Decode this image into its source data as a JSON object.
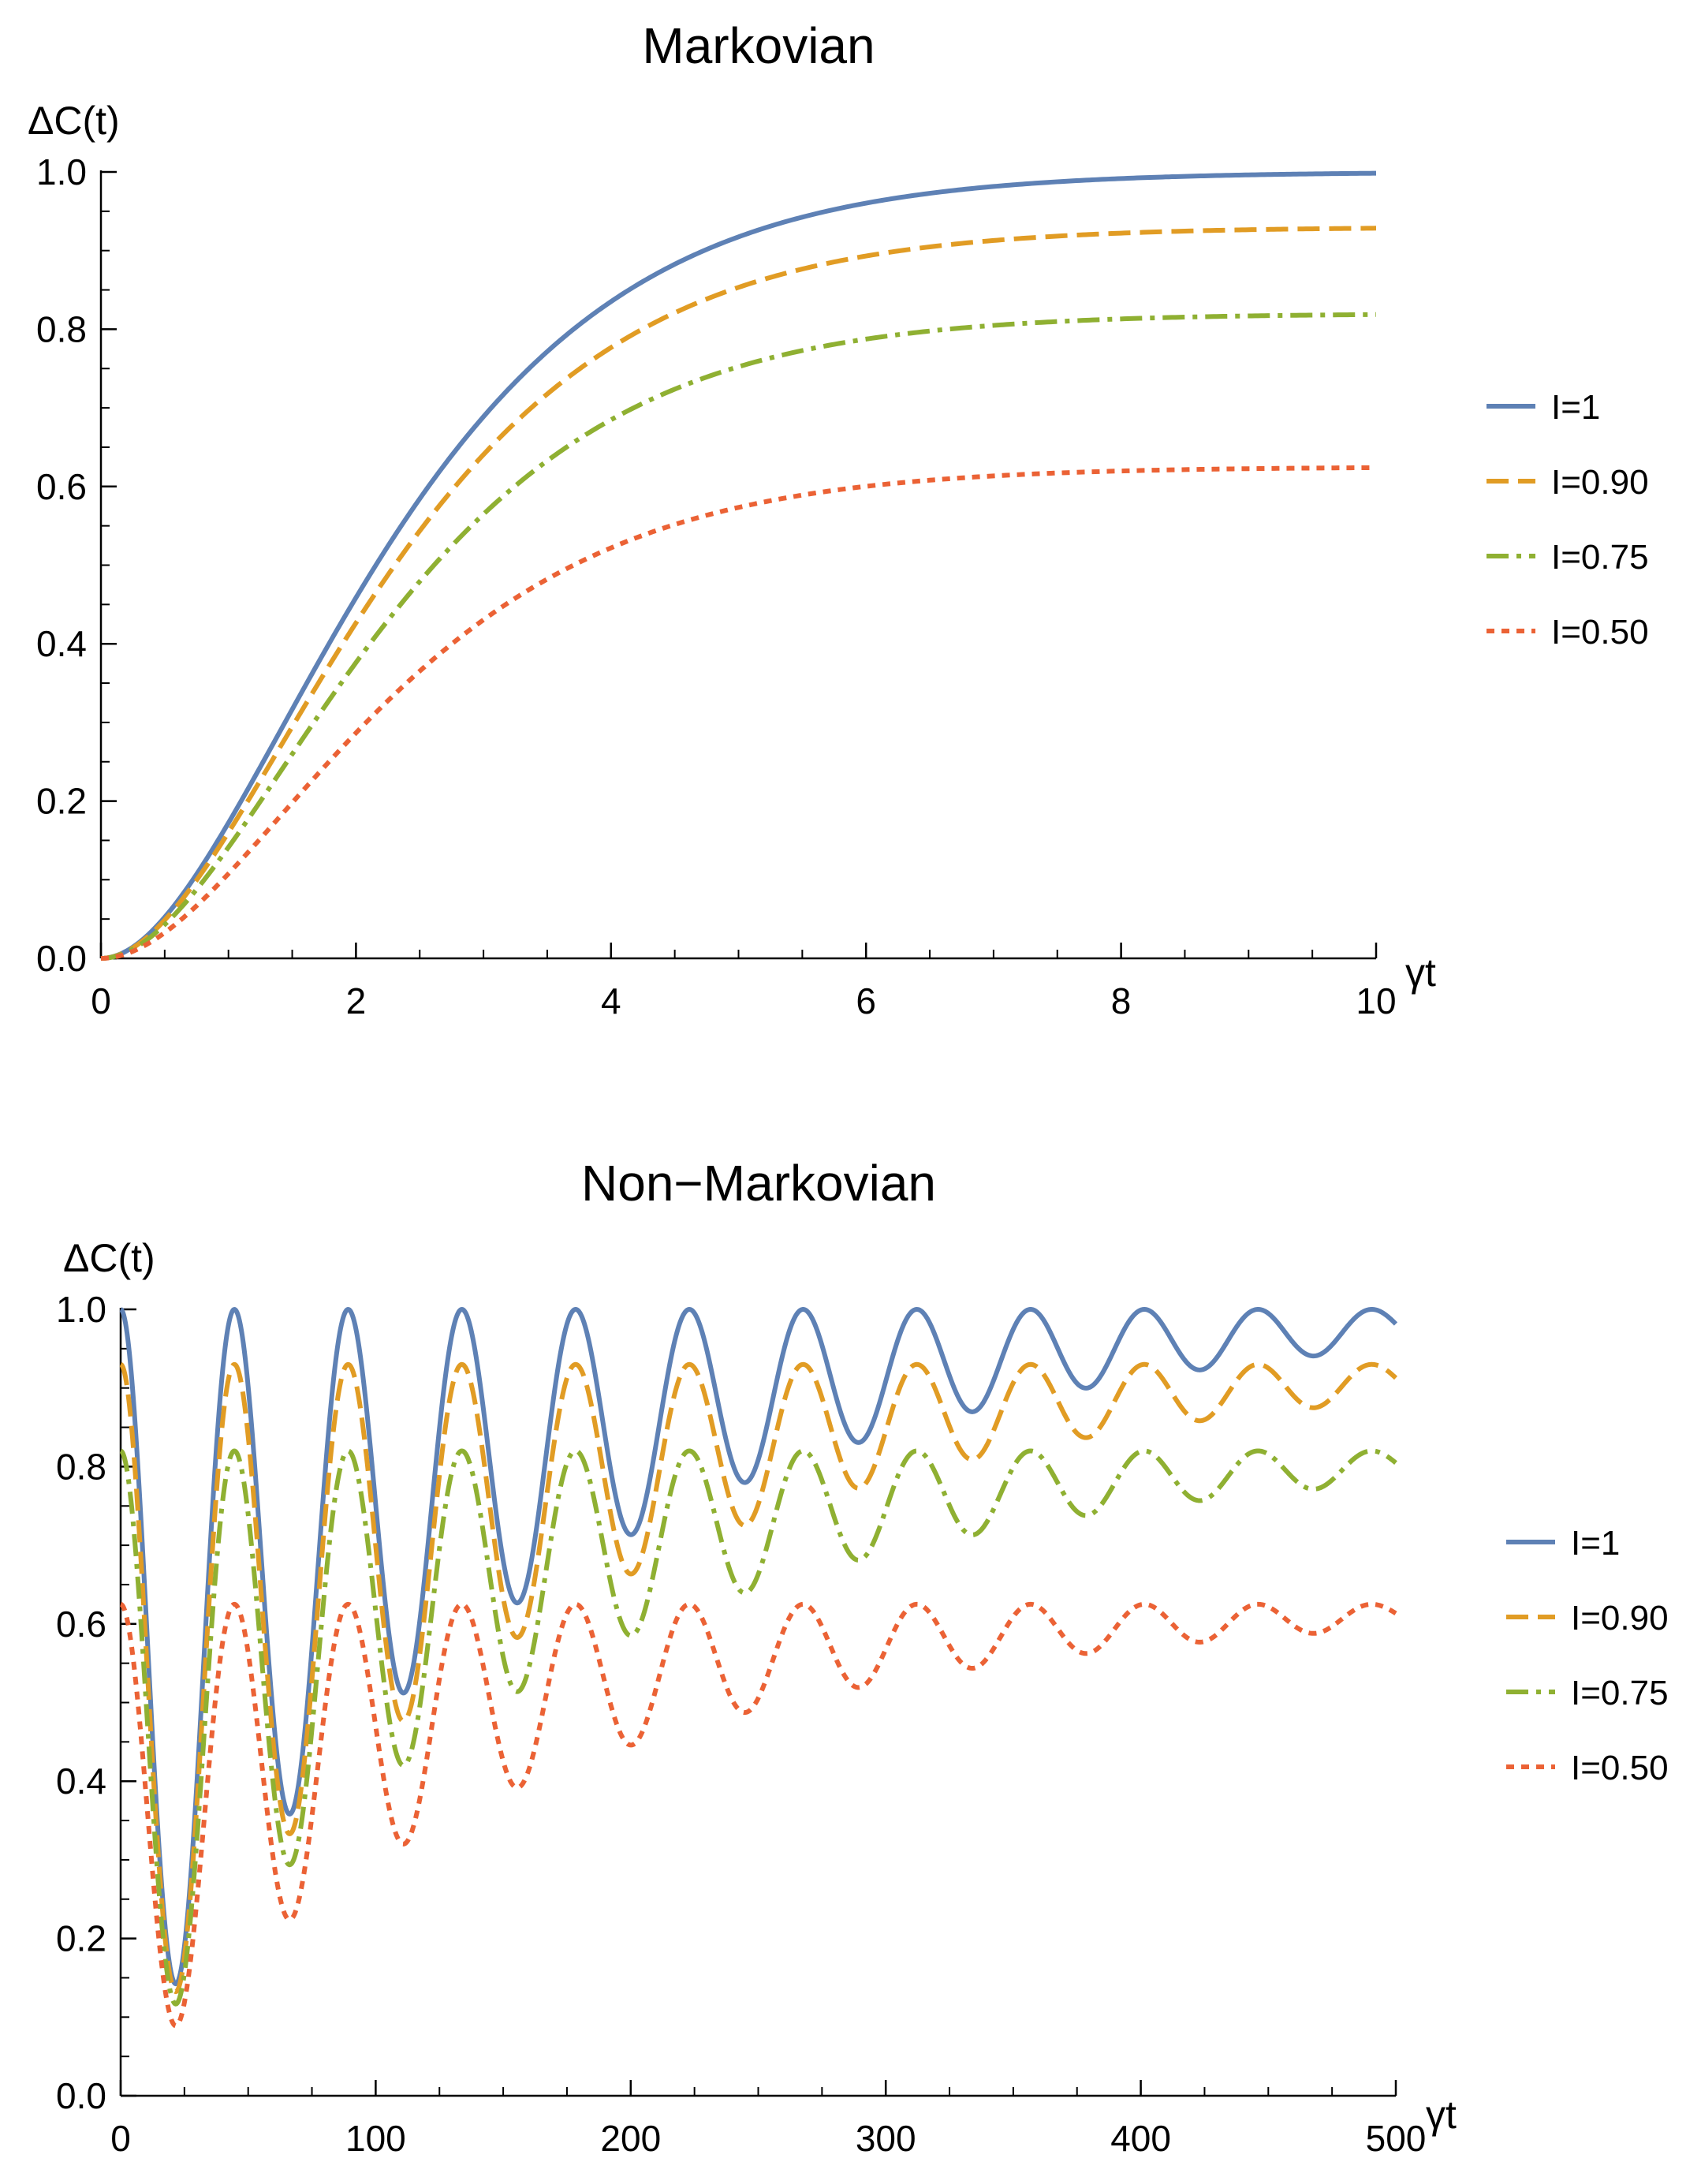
{
  "chart_data": [
    {
      "type": "line",
      "title": "Markovian",
      "xlabel": "γt",
      "ylabel": "ΔC(t)",
      "xlim": [
        0,
        10
      ],
      "ylim": [
        0,
        1
      ],
      "grid": false,
      "legend_position": "right",
      "xticks": [
        0,
        2,
        4,
        6,
        8,
        10
      ],
      "xtick_labels": [
        "0",
        "2",
        "4",
        "6",
        "8",
        "10"
      ],
      "yticks": [
        0,
        0.2,
        0.4,
        0.6,
        0.8,
        1.0
      ],
      "ytick_labels": [
        "0.0",
        "0.2",
        "0.4",
        "0.6",
        "0.8",
        "1.0"
      ],
      "model": "markovian",
      "series": [
        {
          "name": "I=1",
          "plateau": 1.0,
          "color": "#5E81B5",
          "style": "solid"
        },
        {
          "name": "I=0.90",
          "plateau": 0.93,
          "color": "#E19C24",
          "style": "dashed"
        },
        {
          "name": "I=0.75",
          "plateau": 0.82,
          "color": "#8FB032",
          "style": "dashdot"
        },
        {
          "name": "I=0.50",
          "plateau": 0.625,
          "color": "#EB6235",
          "style": "dotted"
        }
      ]
    },
    {
      "type": "line",
      "title": "Non−Markovian",
      "xlabel": "γt",
      "ylabel": "ΔC(t)",
      "xlim": [
        0,
        500
      ],
      "ylim": [
        0,
        1
      ],
      "grid": false,
      "legend_position": "right",
      "xticks": [
        0,
        100,
        200,
        300,
        400,
        500
      ],
      "xtick_labels": [
        "0",
        "100",
        "200",
        "300",
        "400",
        "500"
      ],
      "yticks": [
        0,
        0.2,
        0.4,
        0.6,
        0.8,
        1.0
      ],
      "ytick_labels": [
        "0.0",
        "0.2",
        "0.4",
        "0.6",
        "0.8",
        "1.0"
      ],
      "model": "non-markovian",
      "oscillation_period": 44.6,
      "series": [
        {
          "name": "I=1",
          "plateau": 1.0,
          "color": "#5E81B5",
          "style": "solid"
        },
        {
          "name": "I=0.90",
          "plateau": 0.93,
          "color": "#E19C24",
          "style": "dashed"
        },
        {
          "name": "I=0.75",
          "plateau": 0.82,
          "color": "#8FB032",
          "style": "dashdot"
        },
        {
          "name": "I=0.50",
          "plateau": 0.625,
          "color": "#EB6235",
          "style": "dotted"
        }
      ]
    }
  ]
}
